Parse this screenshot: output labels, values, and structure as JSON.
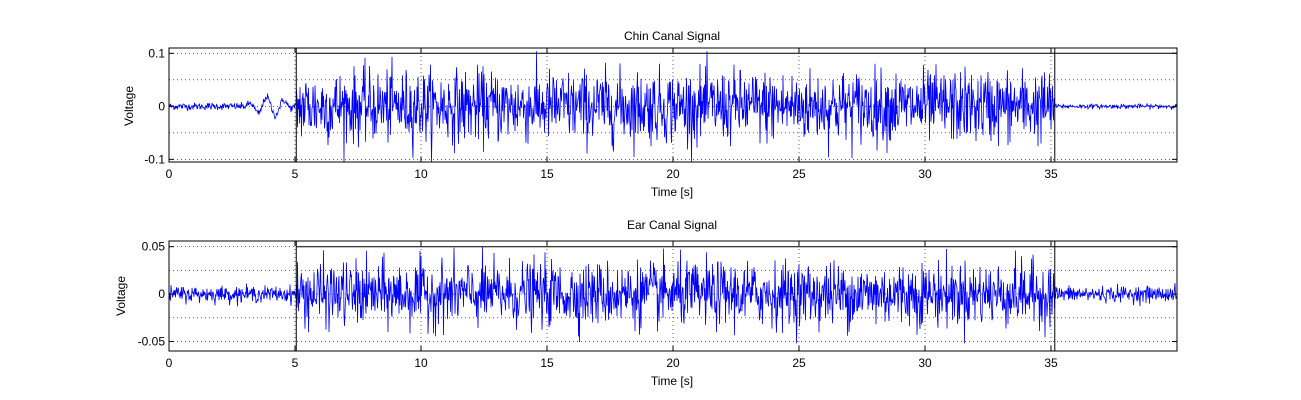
{
  "figure": {
    "background": "#ffffff"
  },
  "chart_data": [
    {
      "type": "line",
      "title": "Chin Canal Signal",
      "xlabel": "Time [s]",
      "ylabel": "Voltage",
      "xlim": [
        0,
        40
      ],
      "ylim": [
        -0.105,
        0.11
      ],
      "xticks": [
        0,
        5,
        10,
        15,
        20,
        25,
        30,
        35
      ],
      "xtick_labels": [
        "0",
        "5",
        "10",
        "15",
        "20",
        "25",
        "30",
        "35"
      ],
      "yticks": [
        -0.1,
        0,
        0.1
      ],
      "ytick_labels": [
        "-0.1",
        "0",
        "0.1"
      ],
      "grid": true,
      "series": [
        {
          "color": "#0000ff",
          "segments": [
            {
              "x_start": 0,
              "x_end": 5.05,
              "amplitude": 0.008
            },
            {
              "x_start": 5.05,
              "x_end": 35.15,
              "amplitude": 0.08
            },
            {
              "x_start": 35.15,
              "x_end": 40,
              "amplitude": 0.005
            }
          ],
          "extras": [
            {
              "x_start": 3,
              "x_end": 5,
              "amplitude": 0.018,
              "type": "oscillation"
            }
          ]
        }
      ],
      "annotations": {
        "vlines": [
          5.05,
          35.15
        ],
        "hline_top": 0.1
      }
    },
    {
      "type": "line",
      "title": "Ear Canal Signal",
      "xlabel": "Time [s]",
      "ylabel": "Voltage",
      "xlim": [
        0,
        40
      ],
      "ylim": [
        -0.06,
        0.056
      ],
      "xticks": [
        0,
        5,
        10,
        15,
        20,
        25,
        30,
        35
      ],
      "xtick_labels": [
        "0",
        "5",
        "10",
        "15",
        "20",
        "25",
        "30",
        "35"
      ],
      "yticks": [
        -0.05,
        0,
        0.05
      ],
      "ytick_labels": [
        "-0.05",
        "0",
        "0.05"
      ],
      "grid": true,
      "series": [
        {
          "color": "#0000ff",
          "segments": [
            {
              "x_start": 0,
              "x_end": 5.05,
              "amplitude": 0.01
            },
            {
              "x_start": 5.05,
              "x_end": 35.15,
              "amplitude": 0.04
            },
            {
              "x_start": 35.15,
              "x_end": 40,
              "amplitude": 0.01
            }
          ]
        }
      ],
      "annotations": {
        "vlines": [
          5.05,
          35.15
        ],
        "hline_top": 0.05
      }
    }
  ]
}
